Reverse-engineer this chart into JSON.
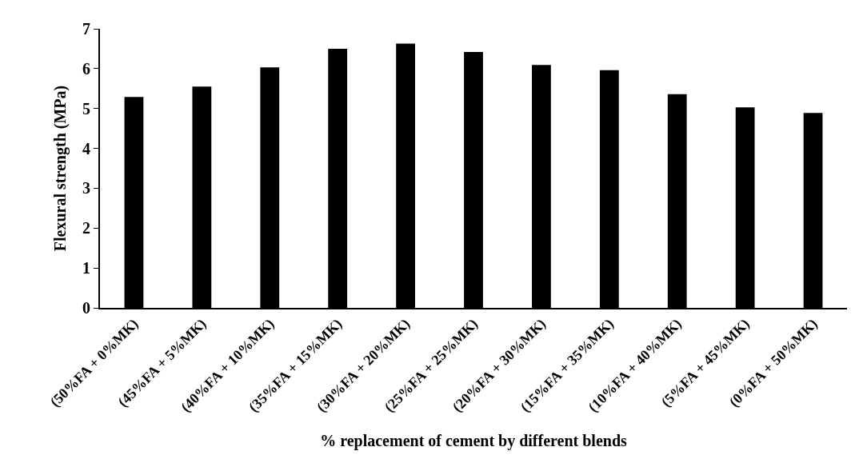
{
  "chart_data": {
    "type": "bar",
    "xlabel": "% replacement of cement by different blends",
    "ylabel": "Flexural strength (MPa)",
    "categories": [
      "(50%FA + 0%MK)",
      "(45%FA + 5%MK)",
      "(40%FA + 10%MK)",
      "(35%FA + 15%MK)",
      "(30%FA + 20%MK)",
      "(25%FA + 25%MK)",
      "(20%FA + 30%MK)",
      "(15%FA + 35%MK)",
      "(10%FA + 40%MK)",
      "(5%FA + 45%MK)",
      "(0%FA + 50%MK)"
    ],
    "values": [
      5.29,
      5.55,
      6.03,
      6.5,
      6.63,
      6.42,
      6.09,
      5.96,
      5.36,
      5.03,
      4.89
    ],
    "color": "#000000",
    "ylim": [
      0,
      7
    ],
    "yticks": [
      0,
      1,
      2,
      3,
      4,
      5,
      6,
      7
    ]
  }
}
